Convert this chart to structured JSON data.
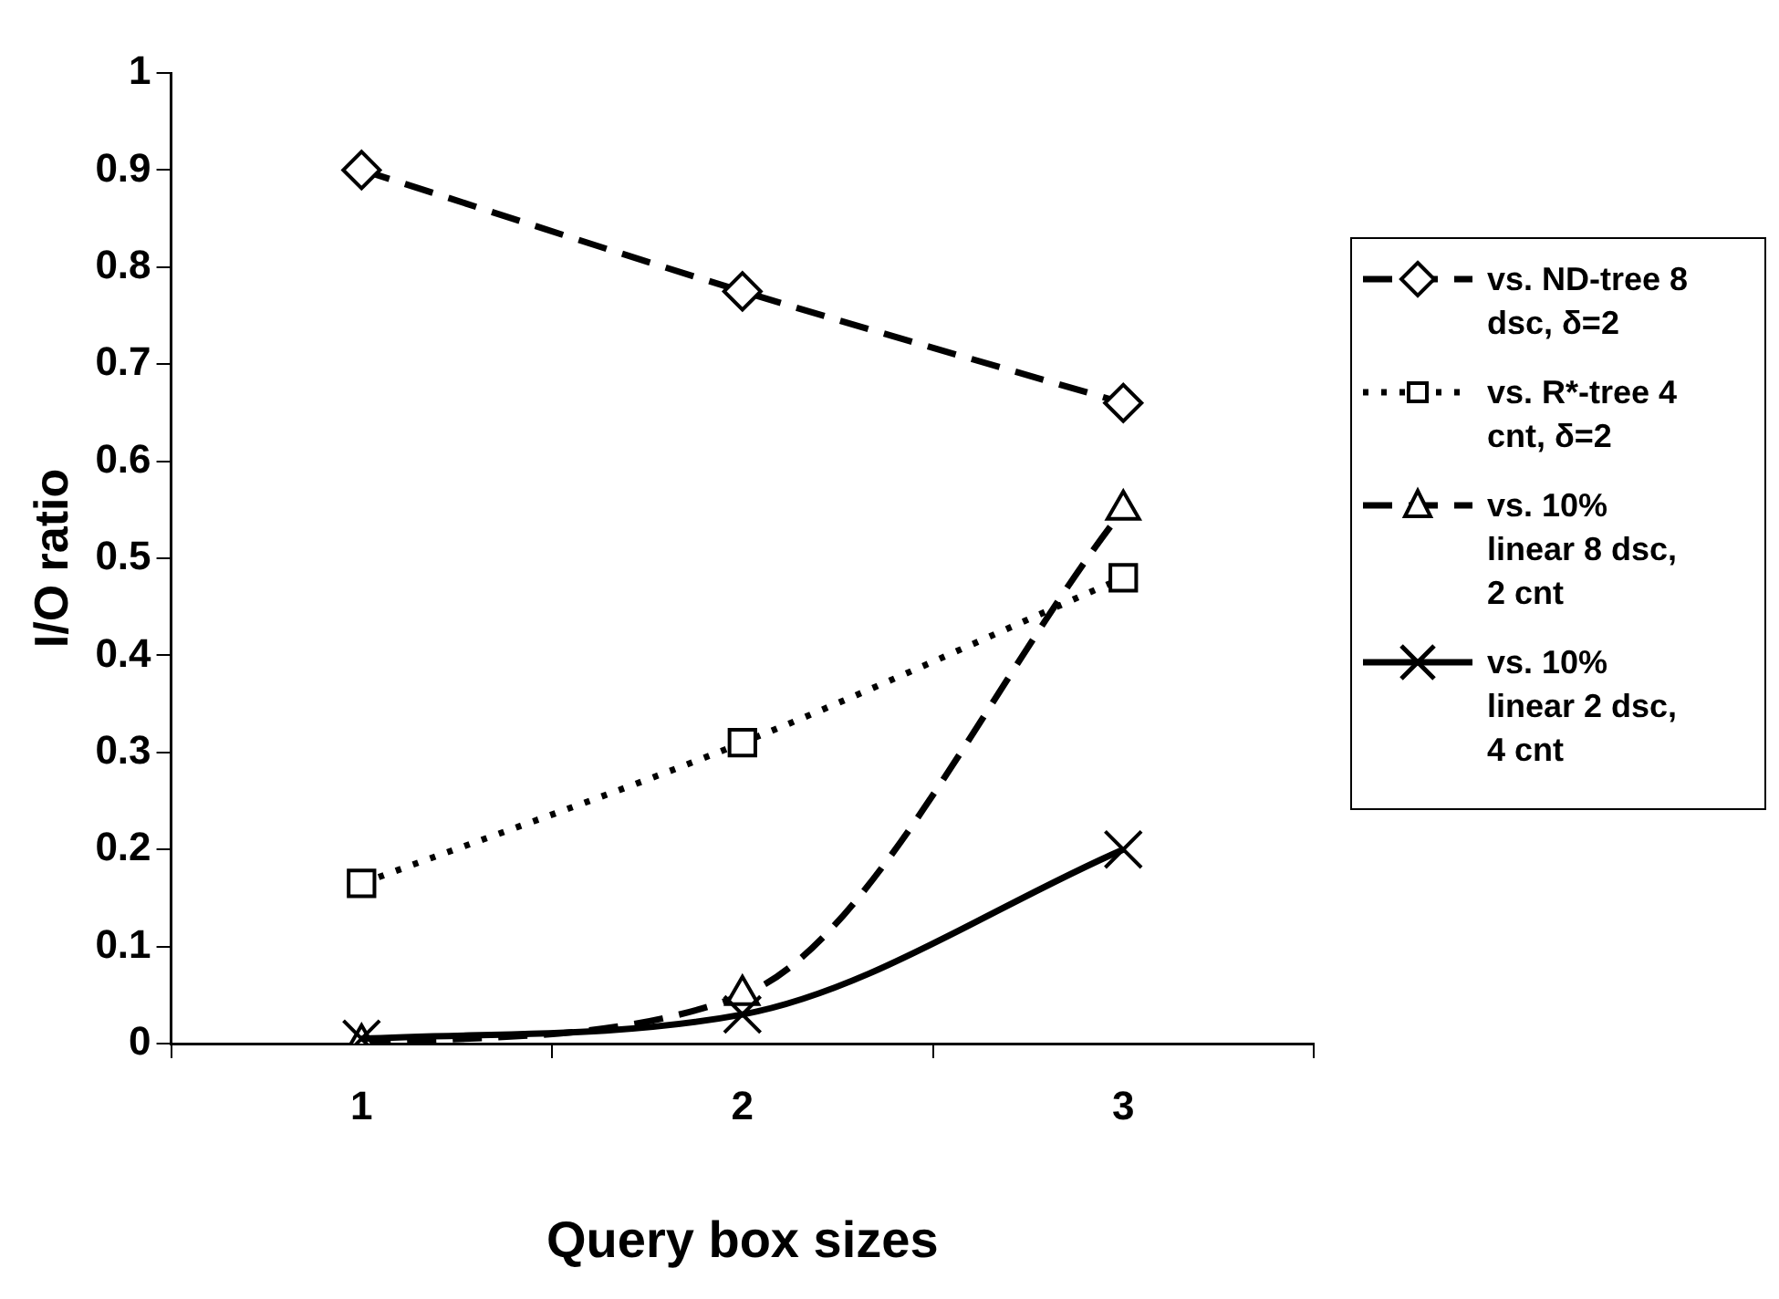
{
  "chart_data": {
    "type": "line",
    "xlabel": "Query box sizes",
    "ylabel": "I/O ratio",
    "categories": [
      "1",
      "2",
      "3"
    ],
    "ylim": [
      0,
      1
    ],
    "yticks": [
      0,
      0.1,
      0.2,
      0.3,
      0.4,
      0.5,
      0.6,
      0.7,
      0.8,
      0.9,
      1
    ],
    "grid": false,
    "legend": "right",
    "series": [
      {
        "name": "vs. ND-tree 8 dsc, δ=2",
        "color": "#000000",
        "values": [
          0.9,
          0.775,
          0.66
        ],
        "marker": "diamond",
        "line_style": "dashed"
      },
      {
        "name": "vs. R*-tree 4 cnt, δ=2",
        "color": "#000000",
        "values": [
          0.165,
          0.31,
          0.48
        ],
        "marker": "square",
        "line_style": "dotted"
      },
      {
        "name": "vs. 10% linear 8 dsc, 2 cnt",
        "color": "#000000",
        "values": [
          0,
          0.05,
          0.55
        ],
        "marker": "triangle",
        "line_style": "dashed"
      },
      {
        "name": "vs. 10% linear 2 dsc, 4 cnt",
        "color": "#000000",
        "values": [
          0.005,
          0.03,
          0.2
        ],
        "marker": "cross",
        "line_style": "solid"
      }
    ]
  }
}
